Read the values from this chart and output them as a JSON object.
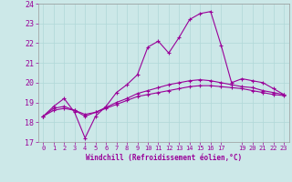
{
  "x_values": [
    0,
    1,
    2,
    3,
    4,
    5,
    6,
    7,
    8,
    9,
    10,
    11,
    12,
    13,
    14,
    15,
    16,
    17,
    18,
    19,
    20,
    21,
    22,
    23
  ],
  "line_zigzag": [
    18.3,
    18.8,
    19.2,
    18.5,
    17.2,
    18.3,
    18.8,
    19.5,
    19.9,
    20.4,
    21.8,
    22.1,
    21.5,
    22.3,
    23.2,
    23.5,
    23.6,
    21.9,
    20.0,
    20.2,
    20.1,
    20.0,
    19.7,
    19.4
  ],
  "line_smooth1": [
    18.3,
    18.6,
    18.7,
    18.6,
    18.4,
    18.5,
    18.7,
    18.9,
    19.1,
    19.3,
    19.4,
    19.5,
    19.6,
    19.7,
    19.8,
    19.85,
    19.85,
    19.8,
    19.75,
    19.7,
    19.6,
    19.5,
    19.4,
    19.35
  ],
  "line_smooth2": [
    18.3,
    18.7,
    18.8,
    18.6,
    18.3,
    18.5,
    18.75,
    19.0,
    19.2,
    19.45,
    19.6,
    19.75,
    19.9,
    20.0,
    20.1,
    20.15,
    20.1,
    20.0,
    19.9,
    19.8,
    19.75,
    19.6,
    19.5,
    19.4
  ],
  "line_color": "#990099",
  "bg_color": "#cce8e8",
  "grid_color": "#b0d8d8",
  "xlabel": "Windchill (Refroidissement éolien,°C)",
  "ylim": [
    17,
    24
  ],
  "xlim": [
    -0.5,
    23.5
  ],
  "yticks": [
    17,
    18,
    19,
    20,
    21,
    22,
    23,
    24
  ],
  "xticks": [
    0,
    1,
    2,
    3,
    4,
    5,
    6,
    7,
    8,
    9,
    10,
    11,
    12,
    13,
    14,
    15,
    16,
    17,
    19,
    20,
    21,
    22,
    23
  ]
}
